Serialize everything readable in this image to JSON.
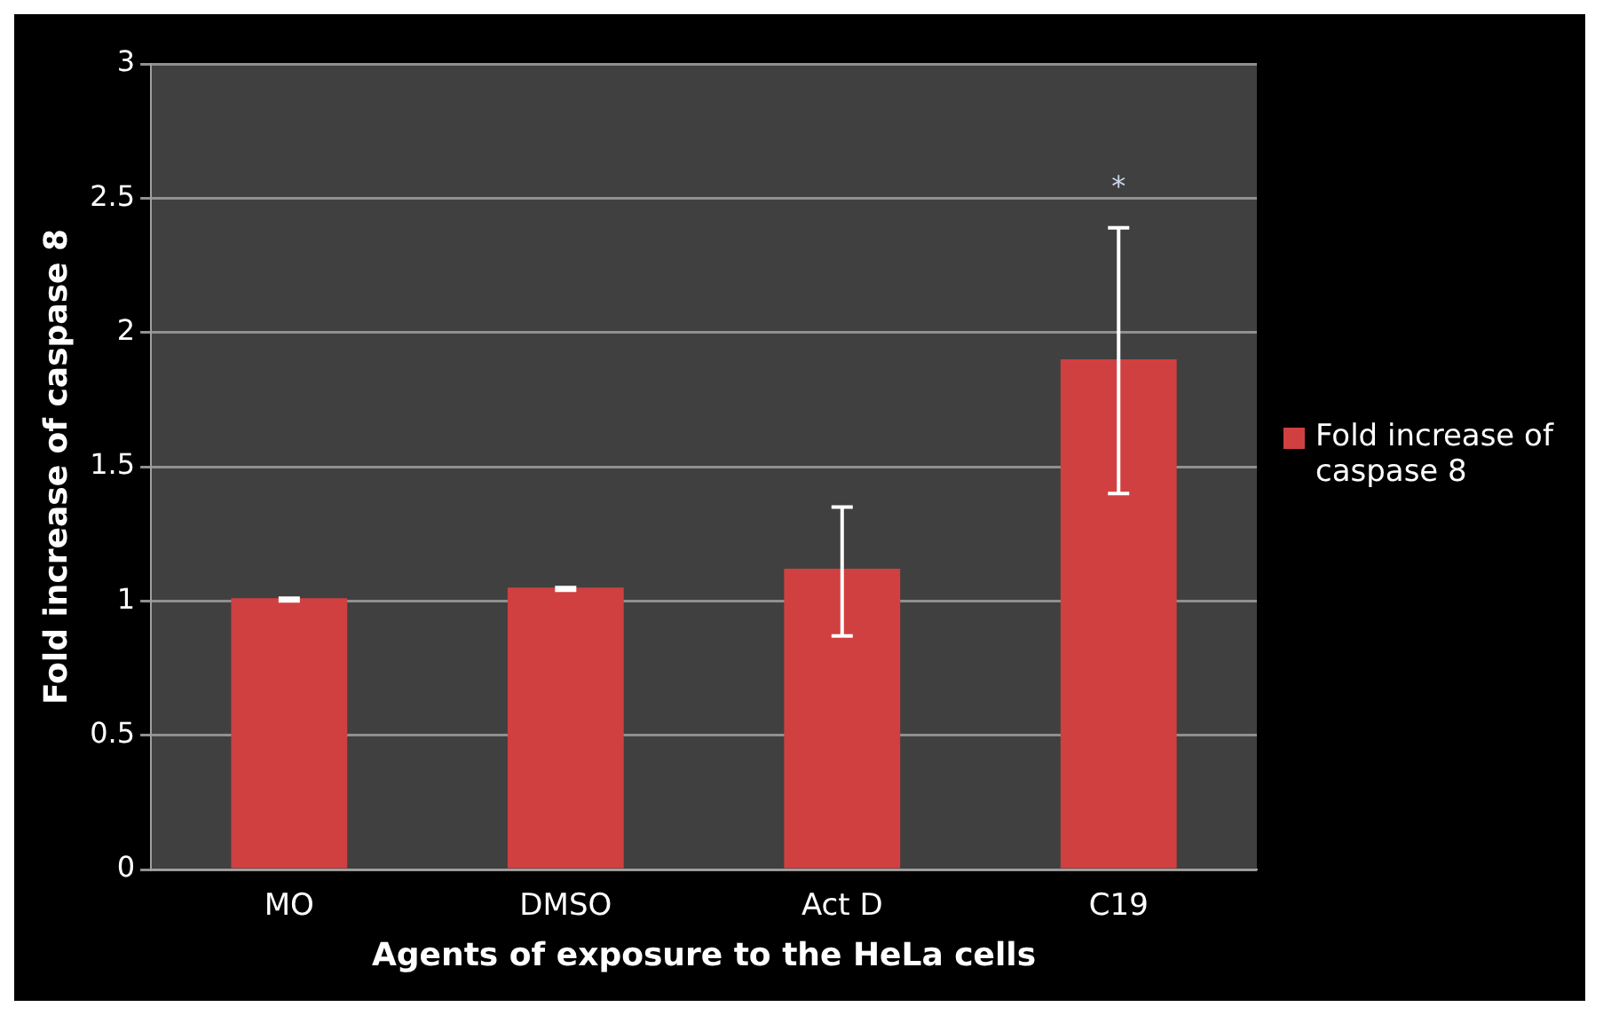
{
  "chart_data": {
    "type": "bar",
    "xlabel": "Agents of exposure to the HeLa cells",
    "ylabel": "Fold increase of caspase 8",
    "categories": [
      "MO",
      "DMSO",
      "Act D",
      "C19"
    ],
    "series": [
      {
        "name": "Fold increase of caspase 8",
        "color": "#d04040",
        "values": [
          1.01,
          1.05,
          1.12,
          1.9
        ],
        "errors": [
          [
            1.0,
            1.01
          ],
          [
            1.04,
            1.05
          ],
          [
            0.87,
            1.35
          ],
          [
            1.4,
            2.39
          ]
        ]
      }
    ],
    "ylim": [
      0,
      3
    ],
    "yticks": [
      0,
      0.5,
      1,
      1.5,
      2,
      2.5,
      3
    ],
    "grid": "y",
    "legend": "right",
    "annotations": [
      "*"
    ]
  }
}
